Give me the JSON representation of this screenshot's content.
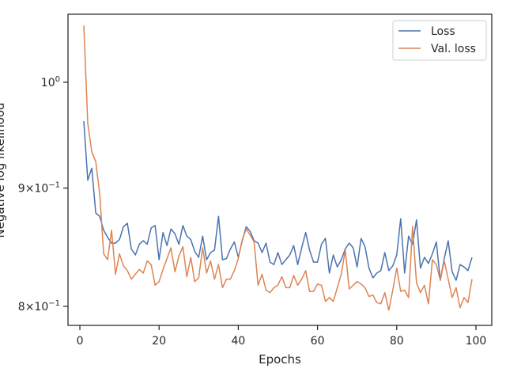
{
  "chart_data": {
    "type": "line",
    "title": "",
    "xlabel": "Epochs",
    "ylabel": "Negative log likelihood",
    "xlim": [
      -3,
      104
    ],
    "ylim": [
      0.785,
      1.07
    ],
    "yscale": "log",
    "xticks": [
      0,
      20,
      40,
      60,
      80,
      100
    ],
    "xtick_labels": [
      "0",
      "20",
      "40",
      "60",
      "80",
      "100"
    ],
    "yticks": [
      0.8,
      0.9,
      1.0
    ],
    "ytick_labels": [
      {
        "mantissa": "8",
        "times": "×",
        "base": "10",
        "exp": "−1"
      },
      {
        "mantissa": "9",
        "times": "×",
        "base": "10",
        "exp": "−1"
      },
      {
        "mantissa": "",
        "times": "",
        "base": "10",
        "exp": "0"
      }
    ],
    "grid": false,
    "legend_position": "top-right",
    "x": [
      1,
      2,
      3,
      4,
      5,
      6,
      7,
      8,
      9,
      10,
      11,
      12,
      13,
      14,
      15,
      16,
      17,
      18,
      19,
      20,
      21,
      22,
      23,
      24,
      25,
      26,
      27,
      28,
      29,
      30,
      31,
      32,
      33,
      34,
      35,
      36,
      37,
      38,
      39,
      40,
      41,
      42,
      43,
      44,
      45,
      46,
      47,
      48,
      49,
      50,
      51,
      52,
      53,
      54,
      55,
      56,
      57,
      58,
      59,
      60,
      61,
      62,
      63,
      64,
      65,
      66,
      67,
      68,
      69,
      70,
      71,
      72,
      73,
      74,
      75,
      76,
      77,
      78,
      79,
      80,
      81,
      82,
      83,
      84,
      85,
      86,
      87,
      88,
      89,
      90,
      91,
      92,
      93,
      94,
      95,
      96,
      97,
      98,
      99
    ],
    "series": [
      {
        "name": "Loss",
        "color": "#4c72b0",
        "values": [
          0.962,
          0.907,
          0.918,
          0.878,
          0.875,
          0.863,
          0.857,
          0.852,
          0.852,
          0.855,
          0.866,
          0.869,
          0.847,
          0.842,
          0.851,
          0.854,
          0.851,
          0.865,
          0.867,
          0.838,
          0.861,
          0.85,
          0.864,
          0.86,
          0.851,
          0.867,
          0.858,
          0.855,
          0.845,
          0.84,
          0.858,
          0.838,
          0.844,
          0.846,
          0.875,
          0.838,
          0.839,
          0.847,
          0.853,
          0.84,
          0.854,
          0.866,
          0.862,
          0.854,
          0.852,
          0.844,
          0.852,
          0.836,
          0.834,
          0.844,
          0.834,
          0.838,
          0.842,
          0.85,
          0.834,
          0.848,
          0.861,
          0.846,
          0.836,
          0.836,
          0.851,
          0.856,
          0.827,
          0.842,
          0.832,
          0.838,
          0.847,
          0.852,
          0.848,
          0.832,
          0.856,
          0.849,
          0.831,
          0.823,
          0.827,
          0.829,
          0.844,
          0.829,
          0.833,
          0.842,
          0.873,
          0.827,
          0.858,
          0.851,
          0.872,
          0.831,
          0.84,
          0.835,
          0.843,
          0.853,
          0.821,
          0.839,
          0.854,
          0.828,
          0.821,
          0.834,
          0.832,
          0.829,
          0.84
        ]
      },
      {
        "name": "Val. loss",
        "color": "#dd8452",
        "values": [
          1.058,
          0.96,
          0.933,
          0.924,
          0.895,
          0.843,
          0.838,
          0.863,
          0.826,
          0.843,
          0.833,
          0.829,
          0.822,
          0.826,
          0.83,
          0.827,
          0.837,
          0.834,
          0.817,
          0.82,
          0.83,
          0.839,
          0.848,
          0.828,
          0.841,
          0.849,
          0.824,
          0.84,
          0.82,
          0.823,
          0.848,
          0.827,
          0.837,
          0.822,
          0.834,
          0.815,
          0.822,
          0.822,
          0.829,
          0.839,
          0.855,
          0.864,
          0.859,
          0.853,
          0.817,
          0.826,
          0.813,
          0.811,
          0.815,
          0.817,
          0.824,
          0.815,
          0.815,
          0.825,
          0.817,
          0.822,
          0.829,
          0.812,
          0.812,
          0.818,
          0.817,
          0.804,
          0.807,
          0.804,
          0.815,
          0.826,
          0.846,
          0.814,
          0.817,
          0.82,
          0.818,
          0.815,
          0.808,
          0.809,
          0.803,
          0.802,
          0.811,
          0.797,
          0.813,
          0.831,
          0.812,
          0.813,
          0.807,
          0.866,
          0.819,
          0.811,
          0.817,
          0.802,
          0.838,
          0.834,
          0.821,
          0.837,
          0.822,
          0.807,
          0.815,
          0.799,
          0.807,
          0.803,
          0.822
        ]
      }
    ]
  }
}
